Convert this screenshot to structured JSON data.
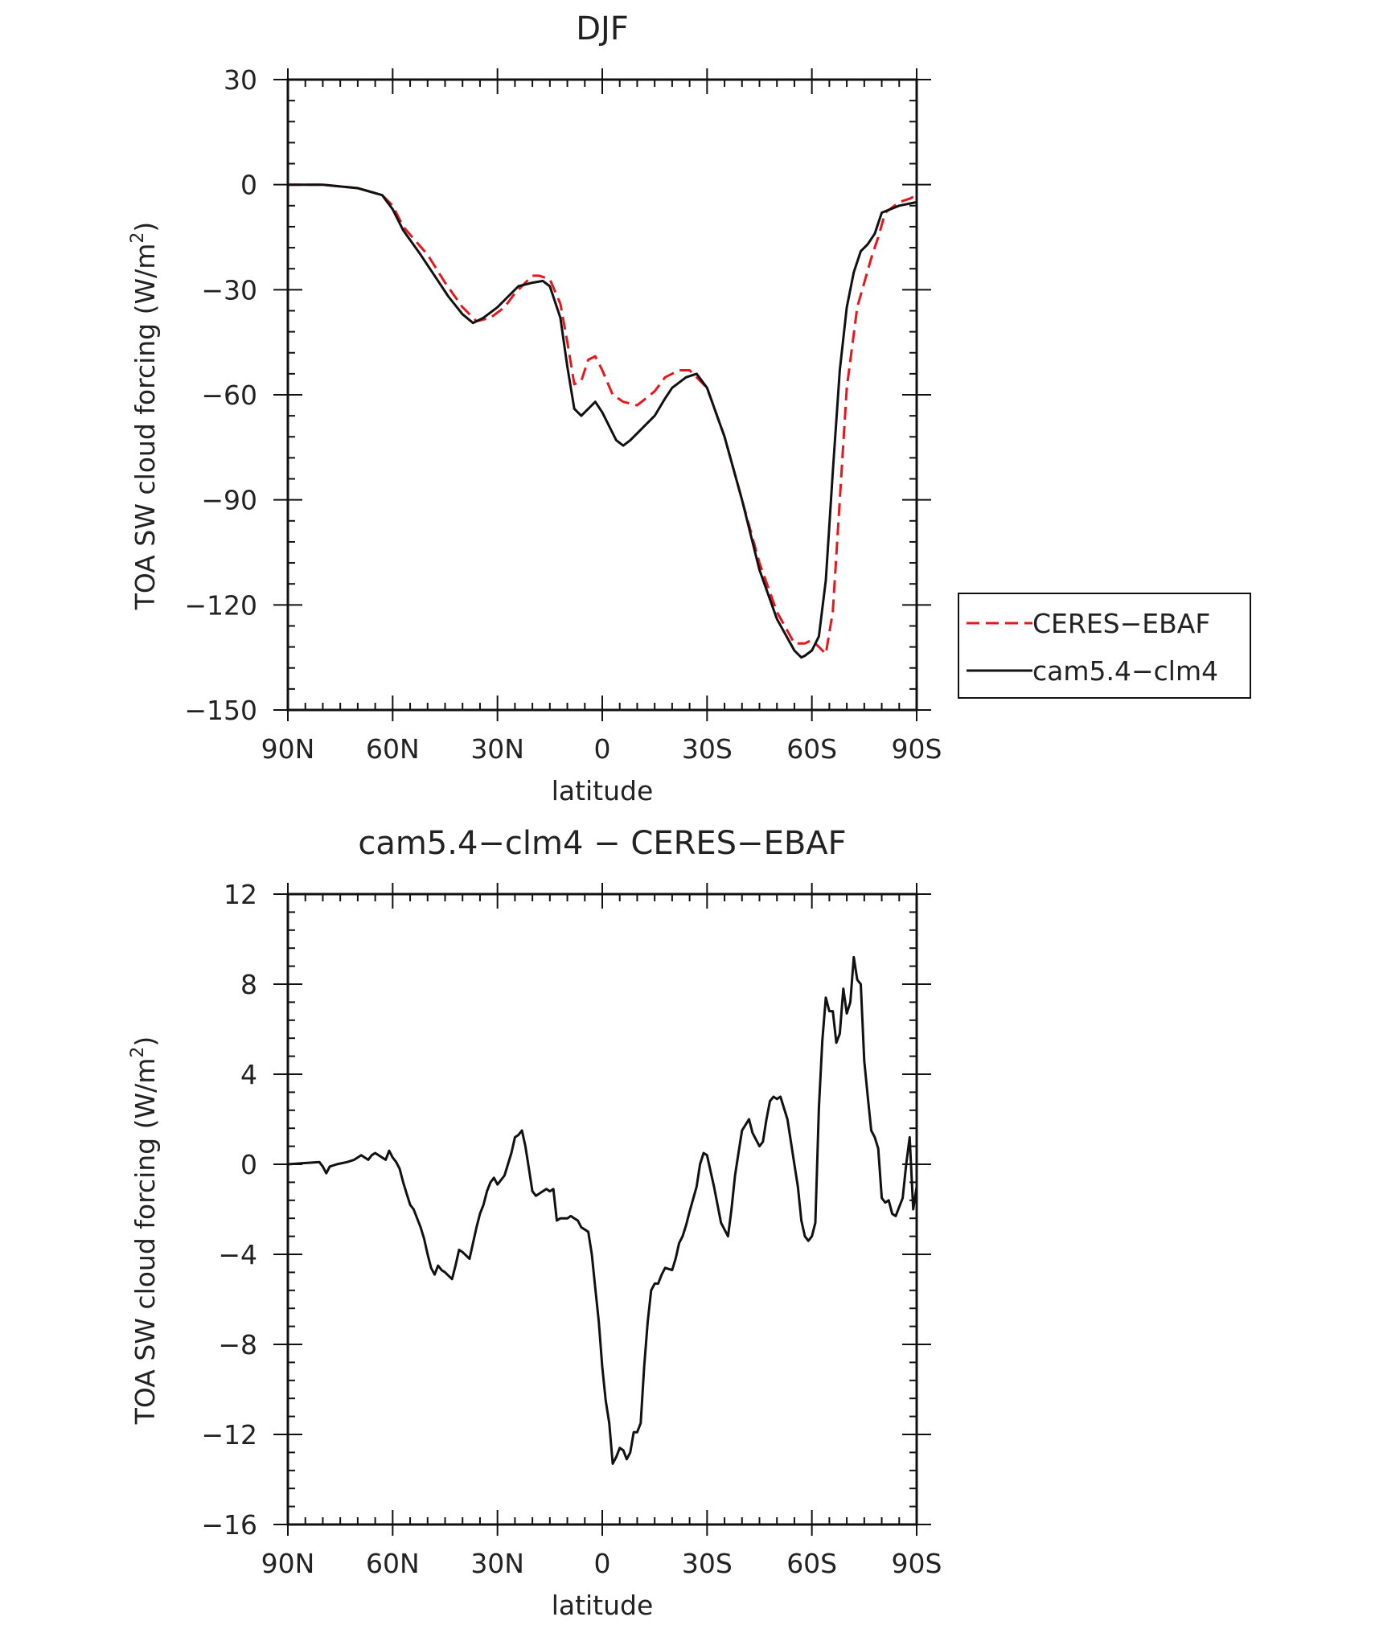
{
  "chart_data": [
    {
      "type": "line",
      "title": "DJF",
      "xlabel": "latitude",
      "ylabel": "TOA SW cloud forcing (W/m²)",
      "ylabel_main": "TOA SW cloud forcing (W/m",
      "ylabel_sup": "2",
      "ylabel_close": ")",
      "xlim": [
        90,
        -90
      ],
      "ylim": [
        -150,
        30
      ],
      "x_ticks": [
        90,
        60,
        30,
        0,
        -30,
        -60,
        -90
      ],
      "x_tick_labels": [
        "90N",
        "60N",
        "30N",
        "0",
        "30S",
        "60S",
        "90S"
      ],
      "y_ticks": [
        30,
        0,
        -30,
        -60,
        -90,
        -120,
        -150
      ],
      "y_tick_labels": [
        "30",
        "0",
        "−30",
        "−60",
        "−90",
        "−120",
        "−150"
      ],
      "legend": {
        "position": "right-middle"
      },
      "series": [
        {
          "name": "CERES−EBAF",
          "color": "#e8161b",
          "dash": "dashed",
          "x": [
            90,
            80,
            70,
            63,
            60,
            57,
            50,
            45,
            40,
            36,
            32,
            28,
            25,
            22,
            20,
            18,
            15,
            12,
            10,
            8,
            6,
            4,
            2,
            0,
            -3,
            -6,
            -10,
            -15,
            -18,
            -22,
            -25,
            -30,
            -35,
            -40,
            -45,
            -50,
            -55,
            -58,
            -60,
            -62,
            -64,
            -66,
            -68,
            -70,
            -73,
            -75,
            -77,
            -79,
            -81,
            -85,
            -88,
            -90
          ],
          "values": [
            0,
            0,
            -1,
            -3,
            -6,
            -12,
            -20,
            -28,
            -35,
            -39,
            -38,
            -35,
            -31,
            -28,
            -26,
            -26,
            -27,
            -34,
            -45,
            -57,
            -56,
            -50,
            -49,
            -53,
            -60,
            -62,
            -63,
            -59,
            -55,
            -53,
            -53,
            -58,
            -72,
            -90,
            -108,
            -122,
            -131,
            -131,
            -130,
            -132,
            -134,
            -122,
            -90,
            -58,
            -35,
            -28,
            -21,
            -15,
            -8,
            -5,
            -4,
            -3
          ]
        },
        {
          "name": "cam5.4−clm4",
          "color": "#111111",
          "dash": "solid",
          "x": [
            90,
            80,
            70,
            63,
            60,
            57,
            52,
            48,
            44,
            40,
            37,
            34,
            30,
            27,
            24,
            20,
            17,
            15,
            12,
            10,
            8,
            6,
            4,
            2,
            0,
            -2,
            -4,
            -6,
            -8,
            -10,
            -12,
            -15,
            -18,
            -20,
            -24,
            -27,
            -30,
            -35,
            -40,
            -45,
            -50,
            -55,
            -57,
            -58,
            -60,
            -62,
            -64,
            -66,
            -68,
            -70,
            -72,
            -74,
            -76,
            -78,
            -80,
            -85,
            -90
          ],
          "values": [
            0,
            0,
            -1,
            -3,
            -7,
            -13,
            -20,
            -26,
            -32,
            -37,
            -39.5,
            -38,
            -35,
            -32,
            -29,
            -28,
            -27.5,
            -29,
            -38,
            -52,
            -64,
            -66,
            -64,
            -62,
            -65,
            -69,
            -73,
            -74.5,
            -73,
            -71,
            -69,
            -66,
            -61,
            -58,
            -55,
            -54,
            -58,
            -72,
            -90,
            -110,
            -124,
            -133,
            -135,
            -134.5,
            -133,
            -129,
            -113,
            -82,
            -53,
            -35,
            -25,
            -19,
            -17,
            -14,
            -8,
            -6,
            -5
          ]
        }
      ]
    },
    {
      "type": "line",
      "title": "cam5.4−clm4 − CERES−EBAF",
      "xlabel": "latitude",
      "ylabel": "TOA SW cloud forcing (W/m²)",
      "ylabel_main": "TOA SW cloud forcing (W/m",
      "ylabel_sup": "2",
      "ylabel_close": ")",
      "xlim": [
        90,
        -90
      ],
      "ylim": [
        -16,
        12
      ],
      "x_ticks": [
        90,
        60,
        30,
        0,
        -30,
        -60,
        -90
      ],
      "x_tick_labels": [
        "90N",
        "60N",
        "30N",
        "0",
        "30S",
        "60S",
        "90S"
      ],
      "y_ticks": [
        12,
        8,
        4,
        0,
        -4,
        -8,
        -12,
        -16
      ],
      "y_tick_labels": [
        "12",
        "8",
        "4",
        "0",
        "−4",
        "−8",
        "−12",
        "−16"
      ],
      "series": [
        {
          "color": "#111111",
          "x": [
            90,
            81,
            80,
            79,
            78,
            76,
            73,
            71,
            69,
            67,
            66,
            65,
            63,
            62,
            61,
            60,
            59,
            58,
            57,
            56,
            55,
            54,
            52,
            51,
            50,
            49,
            48,
            47,
            46,
            45,
            43,
            42,
            41,
            40,
            38,
            36,
            35,
            34,
            33,
            32,
            31,
            30,
            28,
            27,
            26,
            25,
            24,
            23,
            22,
            21,
            20,
            19,
            18,
            16,
            15,
            14,
            13,
            12,
            10,
            9,
            8,
            7,
            6,
            5,
            4,
            3,
            2,
            1,
            0,
            -1,
            -2,
            -3,
            -4,
            -5,
            -6,
            -7,
            -8,
            -9,
            -10,
            -11,
            -12,
            -13,
            -14,
            -15,
            -16,
            -17,
            -18,
            -20,
            -21,
            -22,
            -23,
            -24,
            -25,
            -27,
            -28,
            -29,
            -30,
            -32,
            -34,
            -36,
            -37,
            -38,
            -39,
            -40,
            -42,
            -43,
            -45,
            -46,
            -47,
            -48,
            -49,
            -50,
            -51,
            -53,
            -55,
            -56,
            -57,
            -58,
            -59,
            -60,
            -61,
            -62,
            -63,
            -64,
            -65,
            -66,
            -67,
            -68,
            -69,
            -70,
            -71,
            -72,
            -73,
            -74,
            -75,
            -76,
            -77,
            -78,
            -79,
            -80,
            -81,
            -82,
            -83,
            -84,
            -86,
            -87,
            -88,
            -89,
            -90
          ],
          "values": [
            0,
            0.1,
            -0.1,
            -0.4,
            -0.1,
            0,
            0.1,
            0.2,
            0.4,
            0.2,
            0.4,
            0.5,
            0.3,
            0.2,
            0.6,
            0.3,
            0.1,
            -0.2,
            -0.8,
            -1.3,
            -1.8,
            -2.0,
            -2.8,
            -3.3,
            -4.0,
            -4.6,
            -4.9,
            -4.5,
            -4.7,
            -4.8,
            -5.1,
            -4.5,
            -3.8,
            -3.9,
            -4.2,
            -2.8,
            -2.2,
            -1.8,
            -1.2,
            -0.8,
            -0.6,
            -0.9,
            -0.5,
            0.0,
            0.5,
            1.2,
            1.3,
            1.5,
            0.8,
            -0.2,
            -1.2,
            -1.4,
            -1.3,
            -1.1,
            -1.2,
            -1.1,
            -2.5,
            -2.4,
            -2.4,
            -2.3,
            -2.4,
            -2.5,
            -2.8,
            -2.9,
            -3.0,
            -4.0,
            -5.5,
            -7.0,
            -9.0,
            -10.5,
            -11.5,
            -13.3,
            -13.0,
            -12.6,
            -12.7,
            -13.1,
            -12.8,
            -11.9,
            -11.9,
            -11.5,
            -9.0,
            -7.0,
            -5.6,
            -5.3,
            -5.3,
            -4.9,
            -4.6,
            -4.7,
            -4.2,
            -3.5,
            -3.2,
            -2.7,
            -2.1,
            -1.0,
            0.0,
            0.5,
            0.4,
            -1.0,
            -2.6,
            -3.2,
            -2.0,
            -0.5,
            0.5,
            1.5,
            2.0,
            1.4,
            0.8,
            1.0,
            2.0,
            2.8,
            3.0,
            2.9,
            3.0,
            2.0,
            0.0,
            -1.0,
            -2.5,
            -3.2,
            -3.4,
            -3.2,
            -2.6,
            2.5,
            5.5,
            7.4,
            6.8,
            6.8,
            5.4,
            5.8,
            7.8,
            6.7,
            7.2,
            9.2,
            8.2,
            8.0,
            4.6,
            3.0,
            1.5,
            1.2,
            0.7,
            -1.5,
            -1.7,
            -1.6,
            -2.2,
            -2.3,
            -1.5,
            0.0,
            1.2,
            -2.0,
            -1.0
          ]
        }
      ]
    }
  ]
}
